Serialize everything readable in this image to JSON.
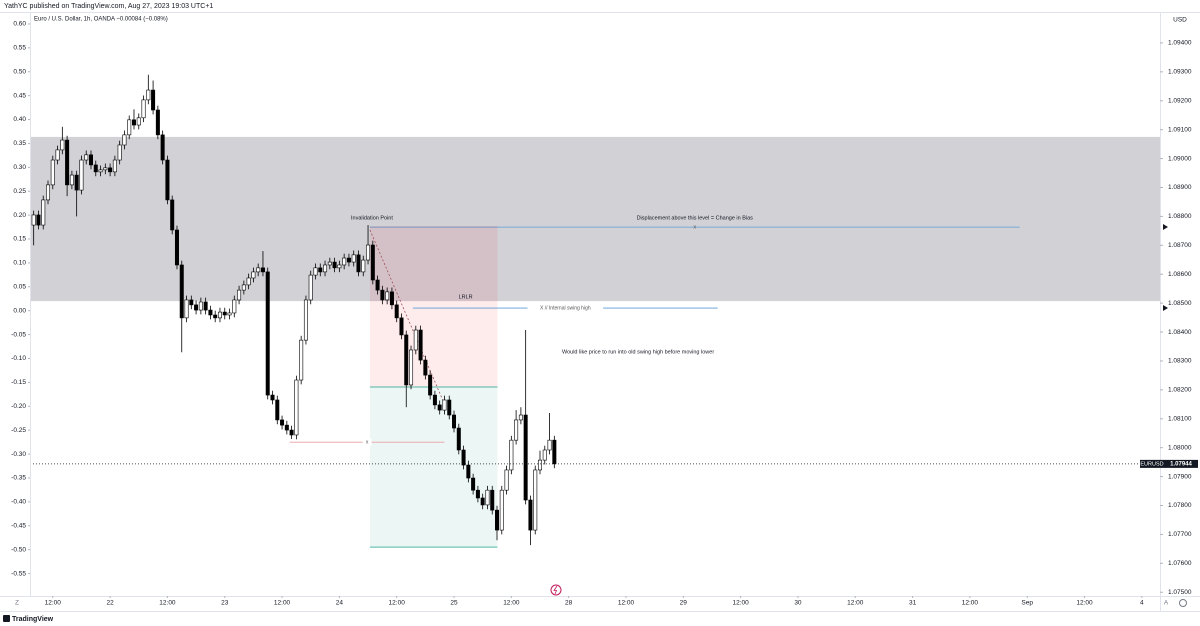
{
  "header": {
    "published": "YathYC published on TradingView.com, Aug 27, 2023 19:03 UTC+1",
    "logo": "TradingView",
    "scale_modes": [
      "Z",
      "A"
    ]
  },
  "chart_data": {
    "type": "candlestick",
    "title": "Euro / U.S. Dollar, 1h, OANDA  −0.00084 (−0.08%)",
    "currency": "USD",
    "symbol": "EURUSD",
    "last_price": 1.07944,
    "up_color": "#ffffff",
    "down_color": "#000000",
    "wick_color": "#000000",
    "grid": false,
    "open": [
      1.0877,
      1.08805,
      1.0877,
      1.08857,
      1.08909,
      1.08995,
      1.0903,
      1.09064,
      1.08909,
      1.08943,
      1.08891,
      1.08995,
      1.09013,
      1.08978,
      1.08954,
      1.08961,
      1.08968,
      1.08954,
      1.08995,
      1.09047,
      1.09082,
      1.09134,
      1.09116,
      1.09141,
      1.09203,
      1.09237,
      1.09168,
      1.09082,
      1.08995,
      1.08857,
      1.08753,
      1.08632,
      1.08449,
      1.08511,
      1.08494,
      1.08476,
      1.08504,
      1.08476,
      1.08459,
      1.08449,
      1.08469,
      1.08459,
      1.08466,
      1.08511,
      1.08545,
      1.08563,
      1.08587,
      1.08608,
      1.08622,
      1.08608,
      1.08182,
      1.08165,
      1.08096,
      1.08078,
      1.08061,
      1.08044,
      1.08234,
      1.08372,
      1.08511,
      1.08597,
      1.08622,
      1.08608,
      1.08632,
      1.08642,
      1.08622,
      1.08632,
      1.08656,
      1.08642,
      1.08667,
      1.08608,
      1.08649,
      1.08701,
      1.0858,
      1.08545,
      1.08511,
      1.08539,
      1.08494,
      1.08449,
      1.0839,
      1.08217,
      1.08338,
      1.08407,
      1.08303,
      1.08251,
      1.08182,
      1.08148,
      1.0813,
      1.08165,
      1.08113,
      1.08068,
      1.07992,
      1.0794,
      1.07895,
      1.07853,
      1.07826,
      1.07802,
      1.07853,
      1.07784,
      1.07715,
      1.07853,
      1.07923,
      1.08026,
      1.08096,
      1.08113,
      1.07819,
      1.07715,
      1.07923,
      1.07957,
      1.07992,
      1.08026
    ],
    "high": [
      1.0882,
      1.0882,
      1.08872,
      1.08924,
      1.0901,
      1.09045,
      1.0911,
      1.09079,
      1.08958,
      1.08958,
      1.0901,
      1.09028,
      1.09028,
      1.08993,
      1.08976,
      1.08983,
      1.08983,
      1.0901,
      1.09062,
      1.09097,
      1.09149,
      1.0917,
      1.09156,
      1.09218,
      1.0929,
      1.0927,
      1.09183,
      1.09097,
      1.0901,
      1.08872,
      1.08768,
      1.08647,
      1.08526,
      1.08526,
      1.08509,
      1.08519,
      1.08519,
      1.08491,
      1.08474,
      1.08484,
      1.08484,
      1.08481,
      1.08526,
      1.0856,
      1.08578,
      1.08602,
      1.08623,
      1.08637,
      1.0868,
      1.08623,
      1.08197,
      1.0818,
      1.08111,
      1.08093,
      1.08076,
      1.08249,
      1.08387,
      1.08526,
      1.08612,
      1.08637,
      1.08637,
      1.08647,
      1.08657,
      1.08657,
      1.08647,
      1.08671,
      1.08671,
      1.08682,
      1.08682,
      1.08664,
      1.0877,
      1.08716,
      1.08595,
      1.0856,
      1.08554,
      1.08554,
      1.08509,
      1.08464,
      1.08405,
      1.08353,
      1.08422,
      1.08422,
      1.08318,
      1.08266,
      1.08197,
      1.08163,
      1.0818,
      1.0818,
      1.08128,
      1.08083,
      1.08007,
      1.07955,
      1.0791,
      1.07868,
      1.07841,
      1.07868,
      1.07868,
      1.07799,
      1.07868,
      1.07938,
      1.08041,
      1.0813,
      1.0814,
      1.08407,
      1.07834,
      1.07938,
      1.0799,
      1.08007,
      1.0812,
      1.08041
    ],
    "low": [
      1.087,
      1.08755,
      1.08755,
      1.08842,
      1.08894,
      1.0898,
      1.09015,
      1.0887,
      1.08894,
      1.088,
      1.08876,
      1.0898,
      1.08963,
      1.08939,
      1.08939,
      1.08946,
      1.08939,
      1.08939,
      1.0898,
      1.09032,
      1.09067,
      1.09101,
      1.09101,
      1.09126,
      1.09188,
      1.09153,
      1.09067,
      1.0898,
      1.08842,
      1.08738,
      1.08617,
      1.0833,
      1.08434,
      1.08479,
      1.08461,
      1.08461,
      1.08461,
      1.08444,
      1.08434,
      1.08434,
      1.08444,
      1.08444,
      1.08451,
      1.08496,
      1.0853,
      1.08548,
      1.08572,
      1.08593,
      1.08593,
      1.08167,
      1.0815,
      1.08081,
      1.08063,
      1.08046,
      1.0803,
      1.08029,
      1.08219,
      1.08357,
      1.08496,
      1.08582,
      1.08593,
      1.08593,
      1.08617,
      1.08607,
      1.08607,
      1.08617,
      1.08627,
      1.08627,
      1.08593,
      1.08593,
      1.08634,
      1.08565,
      1.0853,
      1.08496,
      1.08496,
      1.08479,
      1.08434,
      1.08375,
      1.0814,
      1.08202,
      1.08323,
      1.08288,
      1.08236,
      1.08167,
      1.08133,
      1.08115,
      1.08115,
      1.08098,
      1.08053,
      1.07977,
      1.07925,
      1.0788,
      1.07838,
      1.07811,
      1.07787,
      1.07787,
      1.07769,
      1.0768,
      1.077,
      1.07838,
      1.07908,
      1.08011,
      1.08081,
      1.07804,
      1.07663,
      1.077,
      1.07908,
      1.07942,
      1.07977,
      1.07929
    ],
    "close": [
      1.08805,
      1.0877,
      1.08857,
      1.08909,
      1.08995,
      1.0903,
      1.09064,
      1.08909,
      1.08943,
      1.08891,
      1.08995,
      1.09013,
      1.08978,
      1.08954,
      1.08961,
      1.08968,
      1.08954,
      1.08995,
      1.09047,
      1.09082,
      1.09134,
      1.09116,
      1.09141,
      1.09203,
      1.09237,
      1.09168,
      1.09082,
      1.08995,
      1.08857,
      1.08753,
      1.08632,
      1.08449,
      1.08511,
      1.08494,
      1.08476,
      1.08504,
      1.08476,
      1.08459,
      1.08449,
      1.08469,
      1.08459,
      1.08466,
      1.08511,
      1.08545,
      1.08563,
      1.08587,
      1.08608,
      1.08622,
      1.08608,
      1.08182,
      1.08165,
      1.08096,
      1.08078,
      1.08061,
      1.08044,
      1.08234,
      1.08372,
      1.08511,
      1.08597,
      1.08622,
      1.08608,
      1.08632,
      1.08642,
      1.08622,
      1.08632,
      1.08656,
      1.08642,
      1.08667,
      1.08608,
      1.08649,
      1.08701,
      1.0858,
      1.08545,
      1.08511,
      1.08539,
      1.08494,
      1.08449,
      1.0839,
      1.08217,
      1.08338,
      1.08407,
      1.08303,
      1.08251,
      1.08182,
      1.08148,
      1.0813,
      1.08165,
      1.08113,
      1.08068,
      1.07992,
      1.0794,
      1.07895,
      1.07853,
      1.07826,
      1.07802,
      1.07853,
      1.07784,
      1.07715,
      1.07853,
      1.07923,
      1.08026,
      1.08096,
      1.08113,
      1.07819,
      1.07715,
      1.07923,
      1.07957,
      1.07992,
      1.08026,
      1.07944
    ],
    "xlim": [
      -0.77,
      235.8
    ],
    "xticks": [
      {
        "value": 4,
        "label": "12:00"
      },
      {
        "value": 16,
        "label": "22"
      },
      {
        "value": 28,
        "label": "12:00"
      },
      {
        "value": 40,
        "label": "23"
      },
      {
        "value": 52,
        "label": "12:00"
      },
      {
        "value": 64,
        "label": "24"
      },
      {
        "value": 76,
        "label": "12:00"
      },
      {
        "value": 88,
        "label": "25"
      },
      {
        "value": 100,
        "label": "12:00"
      },
      {
        "value": 112,
        "label": "28"
      },
      {
        "value": 124,
        "label": "12:00"
      },
      {
        "value": 136,
        "label": "29"
      },
      {
        "value": 148,
        "label": "12:00"
      },
      {
        "value": 160,
        "label": "30"
      },
      {
        "value": 172,
        "label": "12:00"
      },
      {
        "value": 184,
        "label": "31"
      },
      {
        "value": 196,
        "label": "12:00"
      },
      {
        "value": 208,
        "label": "Sep"
      },
      {
        "value": 220,
        "label": "12:00"
      },
      {
        "value": 232,
        "label": "4"
      }
    ],
    "ylim": [
      1.07487,
      1.09507
    ],
    "yticks": [
      {
        "value": 1.094,
        "label": "1.09400"
      },
      {
        "value": 1.093,
        "label": "1.09300"
      },
      {
        "value": 1.092,
        "label": "1.09200"
      },
      {
        "value": 1.091,
        "label": "1.09100"
      },
      {
        "value": 1.09,
        "label": "1.09000"
      },
      {
        "value": 1.089,
        "label": "1.08900"
      },
      {
        "value": 1.088,
        "label": "1.08800"
      },
      {
        "value": 1.087,
        "label": "1.08700"
      },
      {
        "value": 1.086,
        "label": "1.08600"
      },
      {
        "value": 1.085,
        "label": "1.08500"
      },
      {
        "value": 1.084,
        "label": "1.08400"
      },
      {
        "value": 1.083,
        "label": "1.08300"
      },
      {
        "value": 1.082,
        "label": "1.08200"
      },
      {
        "value": 1.081,
        "label": "1.08100"
      },
      {
        "value": 1.08,
        "label": "1.08000"
      },
      {
        "value": 1.079,
        "label": "1.07900"
      },
      {
        "value": 1.078,
        "label": "1.07800"
      },
      {
        "value": 1.077,
        "label": "1.07700"
      },
      {
        "value": 1.076,
        "label": "1.07600"
      },
      {
        "value": 1.075,
        "label": "1.07500"
      }
    ],
    "y2lim": [
      -0.597,
      0.625
    ],
    "y2ticks": [
      {
        "value": 0.6,
        "label": "0.60"
      },
      0.55,
      {
        "value": 0.5,
        "label": "0.50"
      },
      0.45,
      {
        "value": 0.4,
        "label": "0.40"
      },
      0.35,
      {
        "value": 0.3,
        "label": "0.30"
      },
      0.25,
      {
        "value": 0.2,
        "label": "0.20"
      },
      0.15,
      {
        "value": 0.1,
        "label": "0.10"
      },
      0.05,
      {
        "value": 0,
        "label": "0.00"
      },
      -0.05,
      {
        "value": -0.1,
        "label": "-0.10"
      },
      -0.15,
      {
        "value": -0.2,
        "label": "-0.20"
      },
      -0.25,
      {
        "value": -0.3,
        "label": "-0.30"
      },
      -0.35,
      {
        "value": -0.4,
        "label": "-0.40"
      },
      -0.45,
      {
        "value": -0.5,
        "label": "-0.50"
      },
      -0.55
    ],
    "zone": {
      "high": 1.09075,
      "low": 1.08507,
      "color": "#d1d1d6"
    },
    "position": {
      "start": 70.4,
      "end": 97.1,
      "stop": 1.08763,
      "entry": 1.0821,
      "target": 1.07656,
      "stop_color": "#f23645",
      "target_color": "#089981",
      "stop_label": "Invalidation Point",
      "label": "LRLR"
    },
    "lines": [
      {
        "price": 1.08763,
        "start": 70.4,
        "end": 206.4,
        "color": "#5b9bd5",
        "label": "Displacement above this level = Change in Bias",
        "marker": "x"
      },
      {
        "price": 1.08483,
        "start": 79.4,
        "end": 143.2,
        "color": "#5b9bd5",
        "tag": "X // Internal swing high"
      },
      {
        "price": 1.08019,
        "start": 53.6,
        "end": 86,
        "color": "#e8a0a4",
        "tag": "x"
      }
    ],
    "trend": {
      "x": [
        70.4,
        86.1
      ],
      "y": [
        1.08753,
        1.08147
      ],
      "color": "#a0525a"
    },
    "note": "Would like price to run into old swing high before moving lower"
  }
}
